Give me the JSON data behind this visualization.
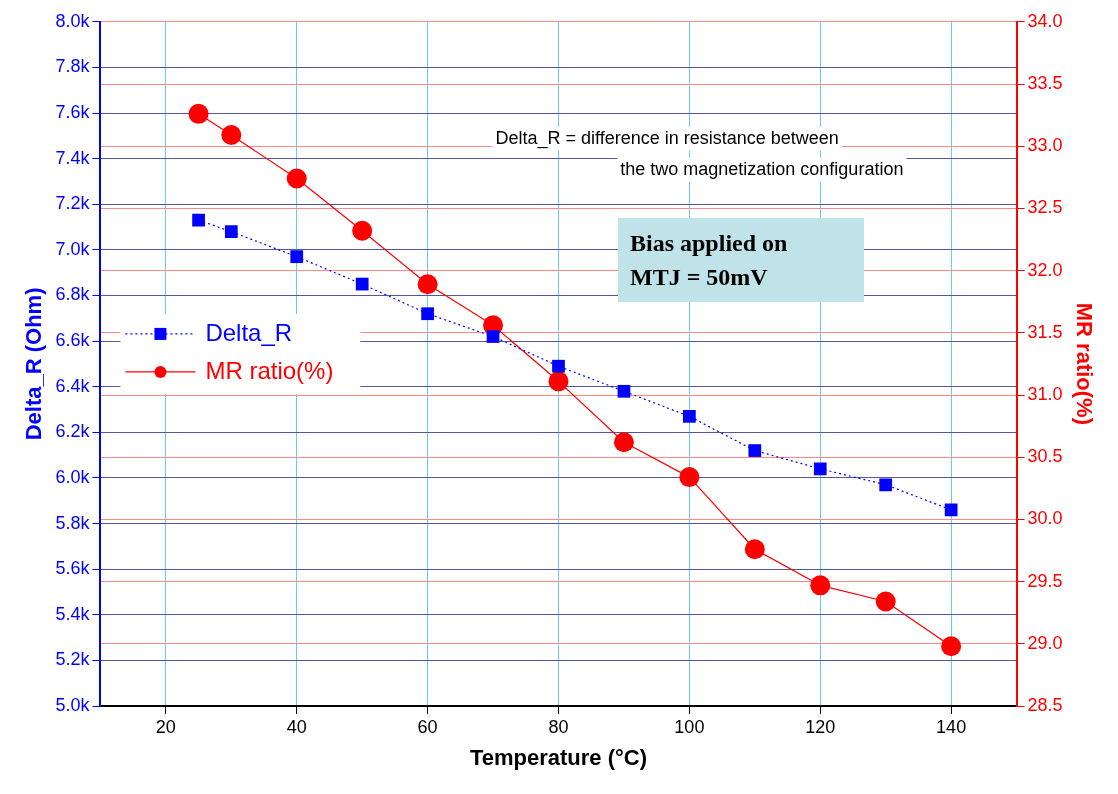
{
  "chart_data": {
    "type": "line",
    "xlabel": "Temperature (°C)",
    "ylabel": "Delta_R (Ohm)",
    "y2label": "MR ratio(%)",
    "x": [
      25,
      30,
      40,
      50,
      60,
      70,
      80,
      90,
      100,
      110,
      120,
      130,
      140
    ],
    "series": [
      {
        "name": "Delta_R",
        "color": "#0000ff",
        "marker": "square",
        "line_style": "dotted",
        "values": [
          7130,
          7080,
          6970,
          6850,
          6720,
          6620,
          6490,
          6380,
          6270,
          6120,
          6040,
          5970,
          5860
        ]
      },
      {
        "name": "MR ratio(%)",
        "color": "#ff0000",
        "marker": "circle",
        "line_style": "solid",
        "axis": "y2",
        "values": [
          33.26,
          33.09,
          32.74,
          32.32,
          31.89,
          31.56,
          31.11,
          30.62,
          30.34,
          29.76,
          29.47,
          29.34,
          28.98
        ]
      }
    ],
    "xlim": [
      10,
      150
    ],
    "xticks": [
      20,
      40,
      60,
      80,
      100,
      120,
      140
    ],
    "ylim": [
      5000,
      8000
    ],
    "yticks": [
      {
        "value": 5000,
        "label": "5.0k"
      },
      {
        "value": 5200,
        "label": "5.2k"
      },
      {
        "value": 5400,
        "label": "5.4k"
      },
      {
        "value": 5600,
        "label": "5.6k"
      },
      {
        "value": 5800,
        "label": "5.8k"
      },
      {
        "value": 6000,
        "label": "6.0k"
      },
      {
        "value": 6200,
        "label": "6.2k"
      },
      {
        "value": 6400,
        "label": "6.4k"
      },
      {
        "value": 6600,
        "label": "6.6k"
      },
      {
        "value": 6800,
        "label": "6.8k"
      },
      {
        "value": 7000,
        "label": "7.0k"
      },
      {
        "value": 7200,
        "label": "7.2k"
      },
      {
        "value": 7400,
        "label": "7.4k"
      },
      {
        "value": 7600,
        "label": "7.6k"
      },
      {
        "value": 7800,
        "label": "7.8k"
      },
      {
        "value": 8000,
        "label": "8.0k"
      }
    ],
    "y2lim": [
      28.5,
      34
    ],
    "y2ticks": [
      28.5,
      {
        "value": 29,
        "label": "29.0"
      },
      29.5,
      {
        "value": 30,
        "label": "30.0"
      },
      30.5,
      {
        "value": 31,
        "label": "31.0"
      },
      31.5,
      {
        "value": 32,
        "label": "32.0"
      },
      32.5,
      {
        "value": 33,
        "label": "33.0"
      },
      33.5,
      {
        "value": 34,
        "label": "34.0"
      }
    ],
    "grid": true,
    "legend": "left",
    "annotations": [
      "Delta_R = difference in resistance between",
      "the two magnetization configuration",
      "Bias applied on\nMTJ = 50mV"
    ]
  }
}
